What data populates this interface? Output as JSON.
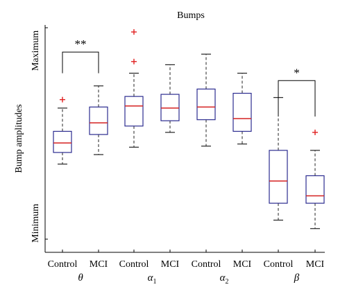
{
  "chart_data": {
    "type": "boxplot",
    "title": "Bumps",
    "xlabel": "",
    "ylabel": "Bump amplitudes",
    "ytick_labels": [
      "Maximum",
      "Minimum"
    ],
    "ylim": [
      0,
      100
    ],
    "grid": false,
    "groups": [
      {
        "label": "θ",
        "sub": ""
      },
      {
        "label": "α",
        "sub": "1"
      },
      {
        "label": "α",
        "sub": "2"
      },
      {
        "label": "β",
        "sub": ""
      }
    ],
    "boxes": [
      {
        "category": "Control",
        "whisker_low": 35.5,
        "q1": 41,
        "median": 45.5,
        "q3": 51,
        "whisker_high": 62,
        "outliers": [
          66
        ]
      },
      {
        "category": "MCI",
        "whisker_low": 40,
        "q1": 49.5,
        "median": 55,
        "q3": 62.5,
        "whisker_high": 72.5,
        "outliers": []
      },
      {
        "category": "Control",
        "whisker_low": 43.5,
        "q1": 53.5,
        "median": 63,
        "q3": 67.5,
        "whisker_high": 78.5,
        "outliers": [
          84,
          98
        ]
      },
      {
        "category": "MCI",
        "whisker_low": 50.5,
        "q1": 56,
        "median": 62,
        "q3": 68.5,
        "whisker_high": 82.5,
        "outliers": []
      },
      {
        "category": "Control",
        "whisker_low": 44,
        "q1": 56.5,
        "median": 62.5,
        "q3": 71,
        "whisker_high": 87.5,
        "outliers": []
      },
      {
        "category": "MCI",
        "whisker_low": 45,
        "q1": 51,
        "median": 57,
        "q3": 69,
        "whisker_high": 78.5,
        "outliers": []
      },
      {
        "category": "Control",
        "whisker_low": 9,
        "q1": 17,
        "median": 27.5,
        "q3": 42,
        "whisker_high": 67,
        "outliers": []
      },
      {
        "category": "MCI",
        "whisker_low": 5,
        "q1": 17,
        "median": 20.5,
        "q3": 30,
        "whisker_high": 42,
        "outliers": [
          50.5
        ]
      }
    ],
    "significance": [
      {
        "boxes": [
          0,
          1
        ],
        "label": "**",
        "level": 88.5,
        "drop_low": 78.5
      },
      {
        "boxes": [
          6,
          7
        ],
        "label": "*",
        "level": 75,
        "drop_low": 58
      }
    ],
    "colors": {
      "box": "#2b2b8f",
      "median": "#d42020",
      "outlier": "#e02020",
      "whisker": "#222222",
      "axis": "#000000"
    }
  }
}
